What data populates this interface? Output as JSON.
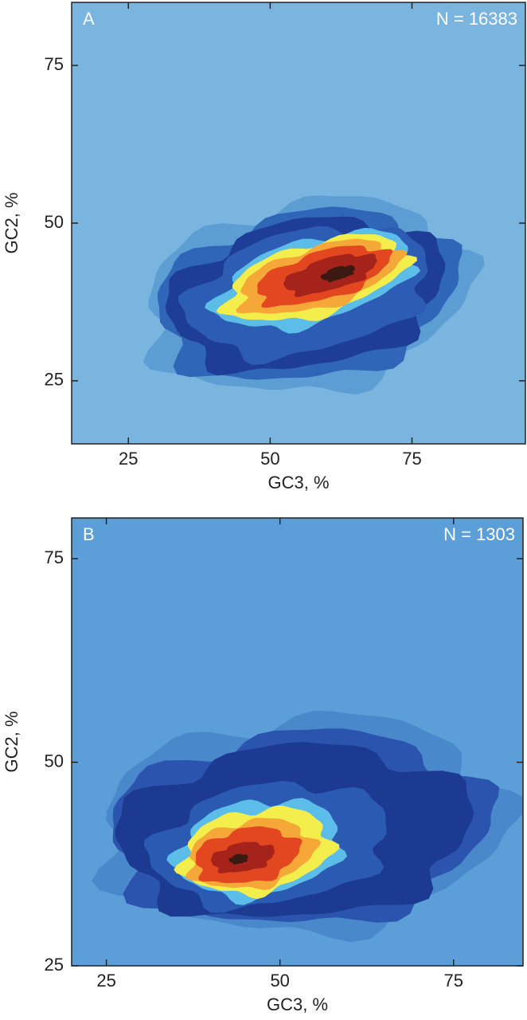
{
  "chart_data": [
    {
      "type": "contour",
      "panel_label": "A",
      "annotation": "N = 16383",
      "x_label": "GC3, %",
      "y_label": "GC2, %",
      "xlim": [
        15,
        95
      ],
      "ylim": [
        15,
        85
      ],
      "xticks": [
        25,
        50,
        75
      ],
      "yticks": [
        25,
        50,
        75
      ],
      "background": "#7ab5e0"
    },
    {
      "type": "contour",
      "panel_label": "B",
      "annotation": "N = 1303",
      "x_label": "GC3, %",
      "y_label": "GC2, %",
      "xlim": [
        20,
        85
      ],
      "ylim": [
        25,
        80
      ],
      "xticks": [
        25,
        50,
        75
      ],
      "yticks": [
        25,
        50,
        75
      ],
      "background": "#5c9fd8"
    }
  ]
}
